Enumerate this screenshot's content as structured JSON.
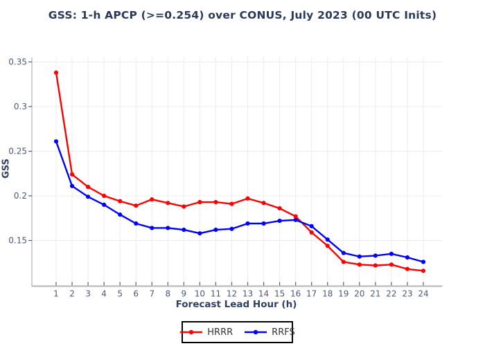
{
  "title": "GSS: 1-h APCP (>=0.254) over CONUS, July 2023 (00 UTC Inits)",
  "colors": {
    "hrrr": "#ff0000",
    "rrfs": "#0000ff",
    "title_text": "#2b3a5c",
    "axis_title_text": "#2e3f63",
    "tick_text": "#4a587a",
    "gridline": "#ececec",
    "axis_line": "#c2c2c2",
    "tick_mark": "#565b66",
    "legend_border": "#000000",
    "legend_text": "#333333",
    "background": "#ffffff"
  },
  "legend": {
    "items": [
      {
        "label": "HRRR",
        "color": "#ff0000"
      },
      {
        "label": "RRFS",
        "color": "#0000ff"
      }
    ]
  },
  "chart_data": {
    "type": "line",
    "title": "GSS: 1-h APCP (>=0.254) over CONUS, July 2023 (00 UTC Inits)",
    "xlabel": "Forecast Lead Hour (h)",
    "ylabel": "GSS",
    "x": [
      1,
      2,
      3,
      4,
      5,
      6,
      7,
      8,
      9,
      10,
      11,
      12,
      13,
      14,
      15,
      16,
      17,
      18,
      19,
      20,
      21,
      22,
      23,
      24
    ],
    "series": [
      {
        "name": "HRRR",
        "color": "#ff0000",
        "values": [
          0.338,
          0.224,
          0.21,
          0.2,
          0.194,
          0.189,
          0.196,
          0.192,
          0.188,
          0.193,
          0.193,
          0.191,
          0.197,
          0.192,
          0.186,
          0.177,
          0.159,
          0.144,
          0.126,
          0.123,
          0.122,
          0.123,
          0.118,
          0.116
        ]
      },
      {
        "name": "RRFS",
        "color": "#0000ff",
        "values": [
          0.261,
          0.211,
          0.199,
          0.19,
          0.179,
          0.169,
          0.164,
          0.164,
          0.162,
          0.158,
          0.162,
          0.163,
          0.169,
          0.169,
          0.172,
          0.173,
          0.166,
          0.151,
          0.136,
          0.132,
          0.133,
          0.135,
          0.131,
          0.126
        ]
      }
    ],
    "xticks": [
      1,
      2,
      3,
      4,
      5,
      6,
      7,
      8,
      9,
      10,
      11,
      12,
      13,
      14,
      15,
      16,
      17,
      18,
      19,
      20,
      21,
      22,
      23,
      24
    ],
    "yticks": [
      0.15,
      0.2,
      0.25,
      0.3,
      0.35
    ],
    "ytick_labels": [
      "0.15",
      "0.2",
      "0.25",
      "0.3",
      "0.35"
    ],
    "xlim": [
      -0.5,
      25.2
    ],
    "ylim": [
      0.102,
      0.356
    ],
    "grid": true,
    "legend_position": "bottom-center"
  }
}
